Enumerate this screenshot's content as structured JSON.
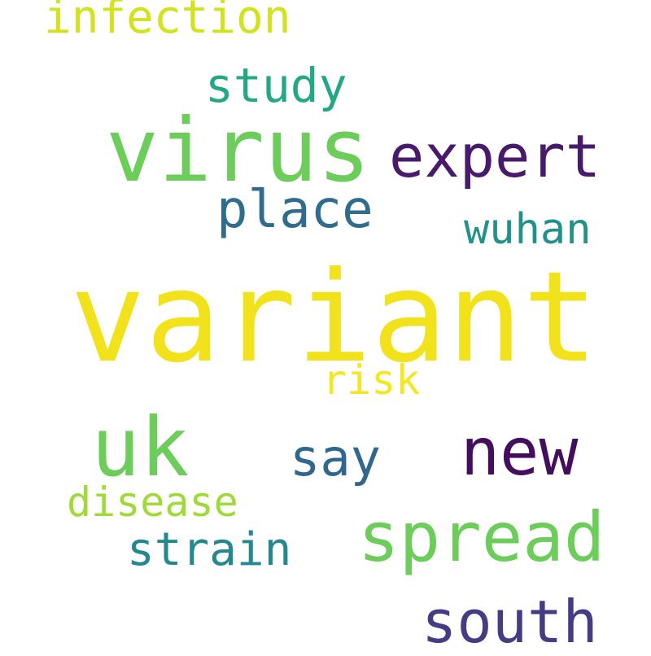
{
  "words": {
    "variant": {
      "text": "variant",
      "color": "#f2e21c"
    },
    "virus": {
      "text": "virus",
      "color": "#6ccd5a"
    },
    "uk": {
      "text": "uk",
      "color": "#6ccd5a"
    },
    "spread": {
      "text": "spread",
      "color": "#6ccd5a"
    },
    "new": {
      "text": "new",
      "color": "#440d5e"
    },
    "expert": {
      "text": "expert",
      "color": "#481a6c"
    },
    "south": {
      "text": "south",
      "color": "#433d84"
    },
    "place": {
      "text": "place",
      "color": "#2f6c8e"
    },
    "say": {
      "text": "say",
      "color": "#31668e"
    },
    "study": {
      "text": "study",
      "color": "#22a884"
    },
    "infection": {
      "text": "infection",
      "color": "#d2e21b"
    },
    "strain": {
      "text": "strain",
      "color": "#23898e"
    },
    "wuhan": {
      "text": "wuhan",
      "color": "#21918c"
    },
    "disease": {
      "text": "disease",
      "color": "#a0da39"
    },
    "risk": {
      "text": "risk",
      "color": "#f6e620"
    }
  }
}
